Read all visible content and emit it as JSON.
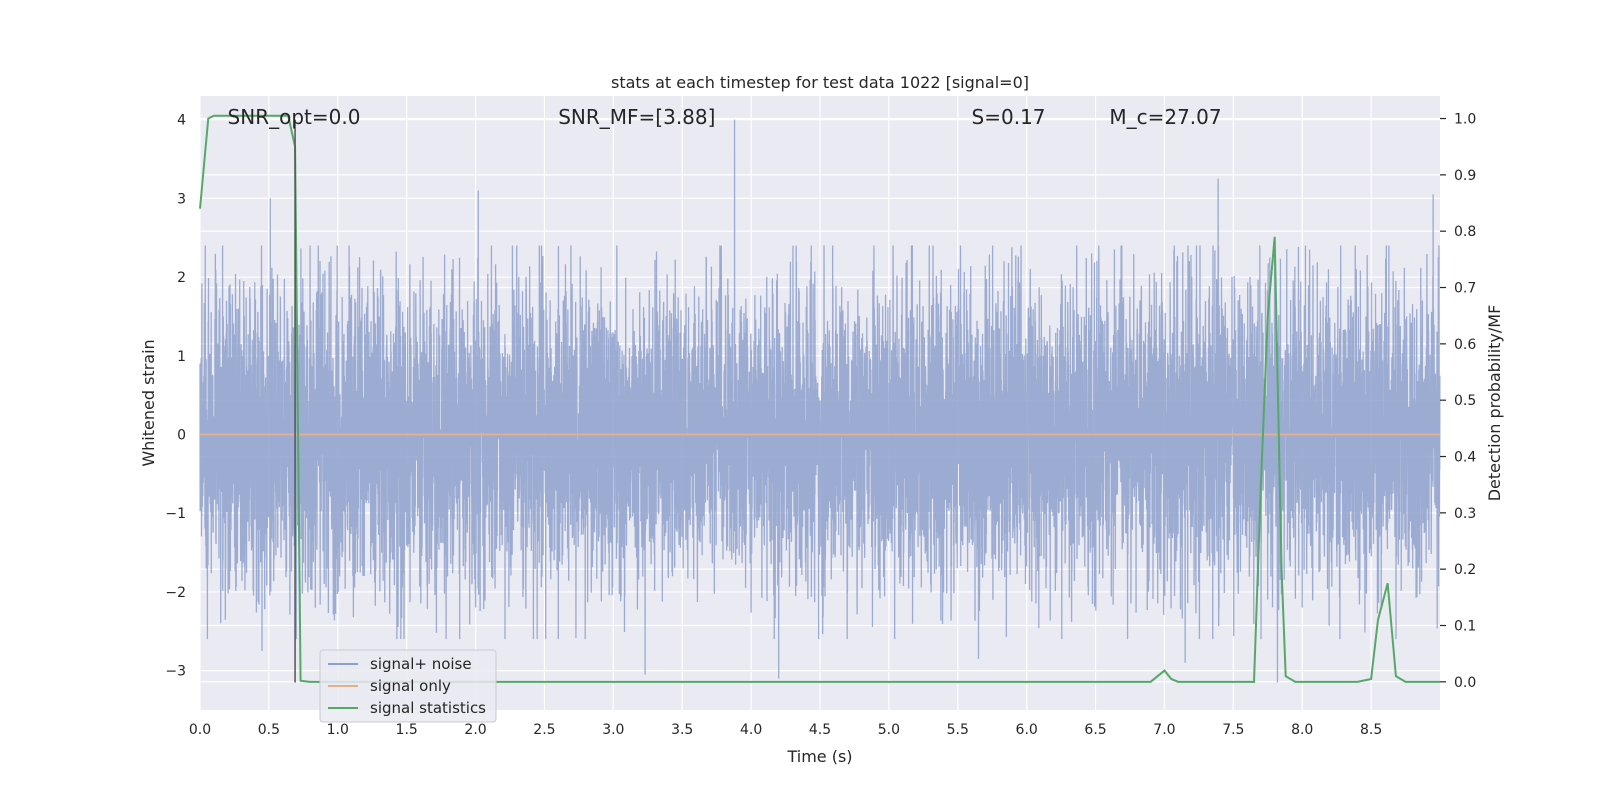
{
  "chart_data": {
    "type": "line",
    "title": "stats at each timestep for test data 1022 [signal=0]",
    "xlabel": "Time (s)",
    "ylabel": "Whitened strain",
    "y2label": "Detection probability/MF",
    "xlim": [
      0,
      9.0
    ],
    "ylim": [
      -3.5,
      4.3
    ],
    "y2lim": [
      -0.05,
      1.04
    ],
    "xticks": [
      0.0,
      0.5,
      1.0,
      1.5,
      2.0,
      2.5,
      3.0,
      3.5,
      4.0,
      4.5,
      5.0,
      5.5,
      6.0,
      6.5,
      7.0,
      7.5,
      8.0,
      8.5
    ],
    "xtick_labels": [
      "0.0",
      "0.5",
      "1.0",
      "1.5",
      "2.0",
      "2.5",
      "3.0",
      "3.5",
      "4.0",
      "4.5",
      "5.0",
      "5.5",
      "6.0",
      "6.5",
      "7.0",
      "7.5",
      "8.0",
      "8.5"
    ],
    "yticks": [
      -3,
      -2,
      -1,
      0,
      1,
      2,
      3,
      4
    ],
    "ytick_labels": [
      "−3",
      "−2",
      "−1",
      "0",
      "1",
      "2",
      "3",
      "4"
    ],
    "y2ticks": [
      0.0,
      0.1,
      0.2,
      0.3,
      0.4,
      0.5,
      0.6,
      0.7,
      0.8,
      0.9,
      1.0
    ],
    "y2tick_labels": [
      "0.0",
      "0.1",
      "0.2",
      "0.3",
      "0.4",
      "0.5",
      "0.6",
      "0.7",
      "0.8",
      "0.9",
      "1.0"
    ],
    "grid": true,
    "legend_position": "lower-left",
    "annotations": [
      {
        "text": "SNR_opt=0.0",
        "x": 0.2
      },
      {
        "text": "SNR_MF=[3.88]",
        "x": 2.6
      },
      {
        "text": "S=0.17",
        "x": 5.6
      },
      {
        "text": "M_c=27.07",
        "x": 6.6
      }
    ],
    "vertical_marker_x": 0.69,
    "series": [
      {
        "name": "signal+ noise",
        "color": "#8da0cb",
        "axis": "left",
        "kind": "noise",
        "sample_rate_hz": 1024,
        "std": 0.95,
        "peaks": [
          [
            0.51,
            3.0
          ],
          [
            3.88,
            4.0
          ],
          [
            2.02,
            3.1
          ],
          [
            7.39,
            3.25
          ],
          [
            8.95,
            3.05
          ],
          [
            7.8,
            2.5
          ],
          [
            3.23,
            -3.05
          ],
          [
            4.2,
            -3.1
          ],
          [
            5.65,
            -2.85
          ],
          [
            7.15,
            -2.9
          ],
          [
            7.82,
            -3.15
          ],
          [
            0.45,
            -2.75
          ],
          [
            1.48,
            -2.6
          ]
        ]
      },
      {
        "name": "signal only",
        "color": "#e5ae8e",
        "axis": "left",
        "x": [
          0.0,
          9.0
        ],
        "y": [
          0.0,
          0.0
        ]
      },
      {
        "name": "signal statistics",
        "color": "#55a868",
        "axis": "right",
        "x": [
          0.0,
          0.06,
          0.1,
          0.2,
          0.4,
          0.6,
          0.64,
          0.69,
          0.73,
          0.8,
          1.0,
          2.0,
          4.0,
          6.0,
          6.9,
          6.95,
          7.0,
          7.05,
          7.1,
          7.65,
          7.7,
          7.75,
          7.8,
          7.85,
          7.88,
          7.95,
          8.4,
          8.5,
          8.55,
          8.62,
          8.68,
          8.75,
          9.0
        ],
        "y": [
          0.84,
          1.0,
          1.005,
          1.005,
          1.005,
          1.005,
          1.005,
          0.95,
          0.002,
          0.0,
          0.0,
          0.0,
          0.0,
          0.0,
          0.0,
          0.01,
          0.02,
          0.005,
          0.0,
          0.0,
          0.35,
          0.65,
          0.79,
          0.2,
          0.01,
          0.0,
          0.0,
          0.005,
          0.11,
          0.175,
          0.01,
          0.0,
          0.0
        ]
      }
    ]
  }
}
